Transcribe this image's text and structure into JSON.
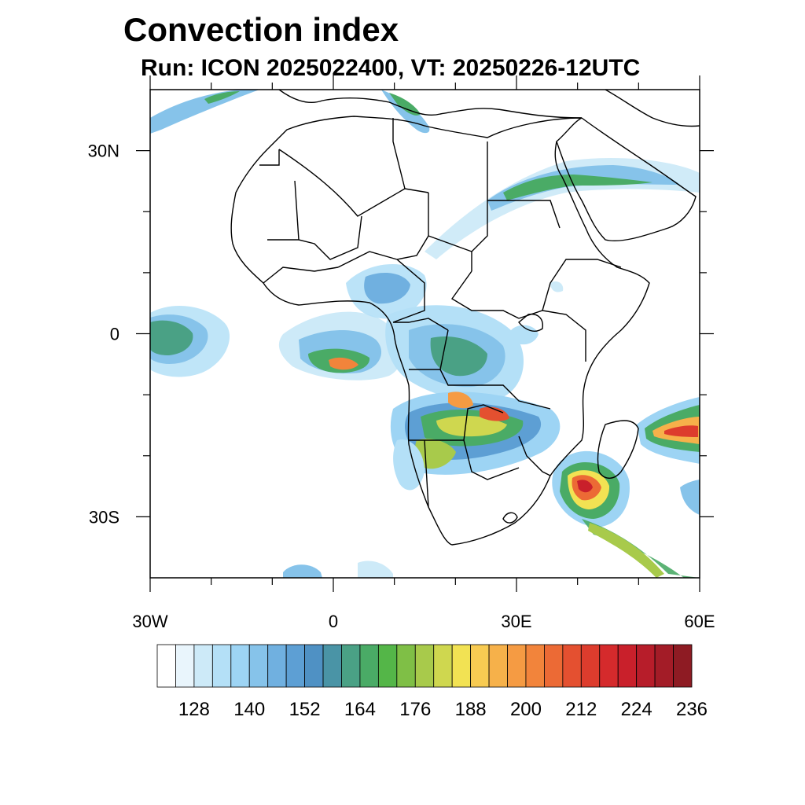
{
  "title": "Convection index",
  "subtitle": "Run: ICON 2025022400,  VT: 20250226-12UTC",
  "map": {
    "lon_range": [
      -30,
      60
    ],
    "lat_range": [
      -40,
      40
    ],
    "x_ticks": [
      {
        "value": -30,
        "label": "30W"
      },
      {
        "value": 0,
        "label": "0"
      },
      {
        "value": 30,
        "label": "30E"
      },
      {
        "value": 60,
        "label": "60E"
      }
    ],
    "y_ticks": [
      {
        "value": 30,
        "label": "30N"
      },
      {
        "value": 0,
        "label": "0"
      },
      {
        "value": -30,
        "label": "30S"
      }
    ],
    "minor_x_ticks": [
      -20,
      -10,
      10,
      20,
      40,
      50
    ],
    "minor_y_ticks": [
      20,
      10,
      -10,
      -20
    ],
    "coastline_color": "#000000",
    "background_color": "#ffffff"
  },
  "colorbar": {
    "colors": [
      "#ffffff",
      "#e9f5fc",
      "#cdeaf8",
      "#b4e0f7",
      "#9dd4f4",
      "#86c3ea",
      "#70b0e0",
      "#5d9fd4",
      "#4f91c4",
      "#4a94a6",
      "#4aa185",
      "#4aab66",
      "#54b648",
      "#7fbf46",
      "#a8ca4b",
      "#cfd74f",
      "#f2e253",
      "#f8cb52",
      "#f6b14a",
      "#f59b43",
      "#f2843b",
      "#ec6a35",
      "#e45030",
      "#dd3c2d",
      "#d52a2c",
      "#c9202b",
      "#b71d2a",
      "#a31c27",
      "#8e1b23"
    ],
    "labels": [
      {
        "index": 3,
        "text": "128"
      },
      {
        "index": 6,
        "text": "140"
      },
      {
        "index": 9,
        "text": "152"
      },
      {
        "index": 12,
        "text": "164"
      },
      {
        "index": 15,
        "text": "176"
      },
      {
        "index": 18,
        "text": "188"
      },
      {
        "index": 21,
        "text": "200"
      },
      {
        "index": 24,
        "text": "212"
      },
      {
        "index": 27,
        "text": "224"
      },
      {
        "index": 30,
        "text": "236"
      }
    ]
  }
}
